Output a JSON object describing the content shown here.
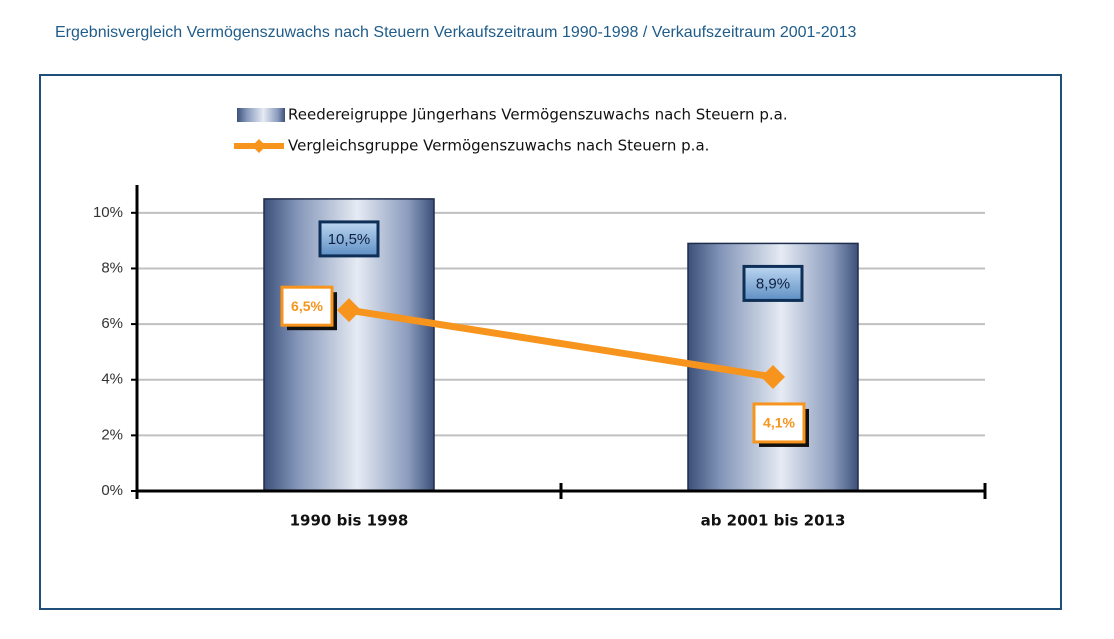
{
  "chart_data": {
    "type": "bar",
    "title": "Ergebnisvergleich Vermögenszuwachs nach Steuern Verkaufszeitraum 1990-1998 / Verkaufszeitraum 2001-2013",
    "categories": [
      "1990 bis 1998",
      "ab 2001 bis 2013"
    ],
    "series": [
      {
        "name": "Reedereigruppe Jüngerhans Vermögenszuwachs nach Steuern p.a.",
        "type": "bar",
        "color": "#7f93b5",
        "values": [
          10.5,
          8.9
        ],
        "value_labels": [
          "10,5%",
          "8,9%"
        ]
      },
      {
        "name": "Vergleichsgruppe Vermögenszuwachs nach Steuern p.a.",
        "type": "line",
        "color": "#f7941d",
        "values": [
          6.5,
          4.1
        ],
        "value_labels": [
          "6,5%",
          "4,1%"
        ]
      }
    ],
    "ylim": [
      0,
      11
    ],
    "yticks": [
      {
        "value": 0,
        "label": "0%"
      },
      {
        "value": 2,
        "label": "2%"
      },
      {
        "value": 4,
        "label": "4%"
      },
      {
        "value": 6,
        "label": "6%"
      },
      {
        "value": 8,
        "label": "8%"
      },
      {
        "value": 10,
        "label": "10%"
      }
    ],
    "grid": true
  }
}
